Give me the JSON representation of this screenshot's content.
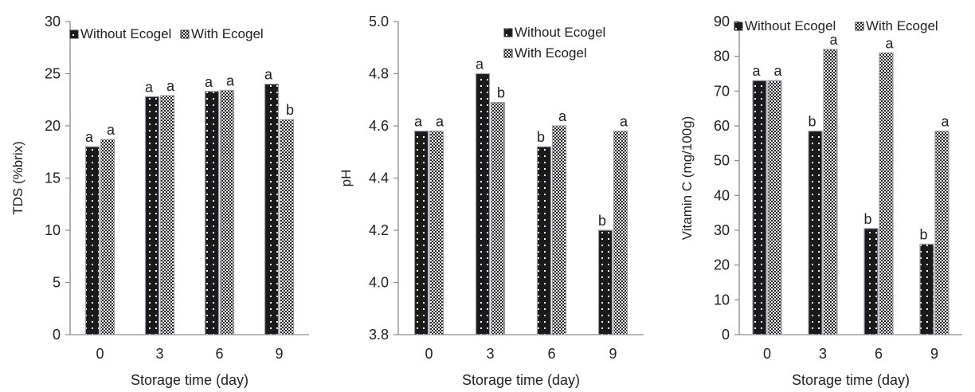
{
  "chart_data": [
    {
      "type": "bar",
      "title": "",
      "xlabel": "Storage time (day)",
      "ylabel": "TDS (%brix)",
      "categories": [
        "0",
        "3",
        "6",
        "9"
      ],
      "ylim": [
        0,
        30
      ],
      "yticks": [
        "0",
        "5",
        "10",
        "15",
        "20",
        "25",
        "30"
      ],
      "legend_position": "top-left",
      "series": [
        {
          "name": "Without Ecogel",
          "values": [
            18.0,
            22.8,
            23.3,
            24.0
          ],
          "labels": [
            "a",
            "a",
            "a",
            "a"
          ]
        },
        {
          "name": "With Ecogel",
          "values": [
            18.7,
            22.9,
            23.4,
            20.6
          ],
          "labels": [
            "a",
            "a",
            "a",
            "b"
          ]
        }
      ]
    },
    {
      "type": "bar",
      "title": "",
      "xlabel": "Storage time (day)",
      "ylabel": "pH",
      "categories": [
        "0",
        "3",
        "6",
        "9"
      ],
      "ylim": [
        3.8,
        5.0
      ],
      "yticks": [
        "3.8",
        "4.0",
        "4.2",
        "4.4",
        "4.6",
        "4.8",
        "5.0"
      ],
      "legend_position": "top-right",
      "series": [
        {
          "name": "Without Ecogel",
          "values": [
            4.58,
            4.8,
            4.52,
            4.2
          ],
          "labels": [
            "a",
            "a",
            "b",
            "b"
          ]
        },
        {
          "name": "With Ecogel",
          "values": [
            4.58,
            4.69,
            4.6,
            4.58
          ],
          "labels": [
            "a",
            "b",
            "a",
            "a"
          ]
        }
      ]
    },
    {
      "type": "bar",
      "title": "",
      "xlabel": "Storage time (day)",
      "ylabel": "Vitamin C (mg/100g)",
      "categories": [
        "0",
        "3",
        "6",
        "9"
      ],
      "ylim": [
        0,
        90
      ],
      "yticks": [
        "0",
        "10",
        "20",
        "30",
        "40",
        "50",
        "60",
        "70",
        "80",
        "90"
      ],
      "legend_position": "top",
      "series": [
        {
          "name": "Without Ecogel",
          "values": [
            73,
            58.5,
            30.5,
            26
          ],
          "labels": [
            "a",
            "b",
            "b",
            "b"
          ]
        },
        {
          "name": "With Ecogel",
          "values": [
            73,
            82,
            81,
            58.5
          ],
          "labels": [
            "a",
            "a",
            "a",
            "a"
          ]
        }
      ]
    }
  ],
  "legend": {
    "without_label": "Without Ecogel",
    "with_label": "With Ecogel"
  },
  "colors": {
    "without_fill": "#1a1a1a",
    "with_fill": "#ffffff",
    "axis": "#8a8a8a",
    "bar_edge": "#9a9aa8"
  }
}
